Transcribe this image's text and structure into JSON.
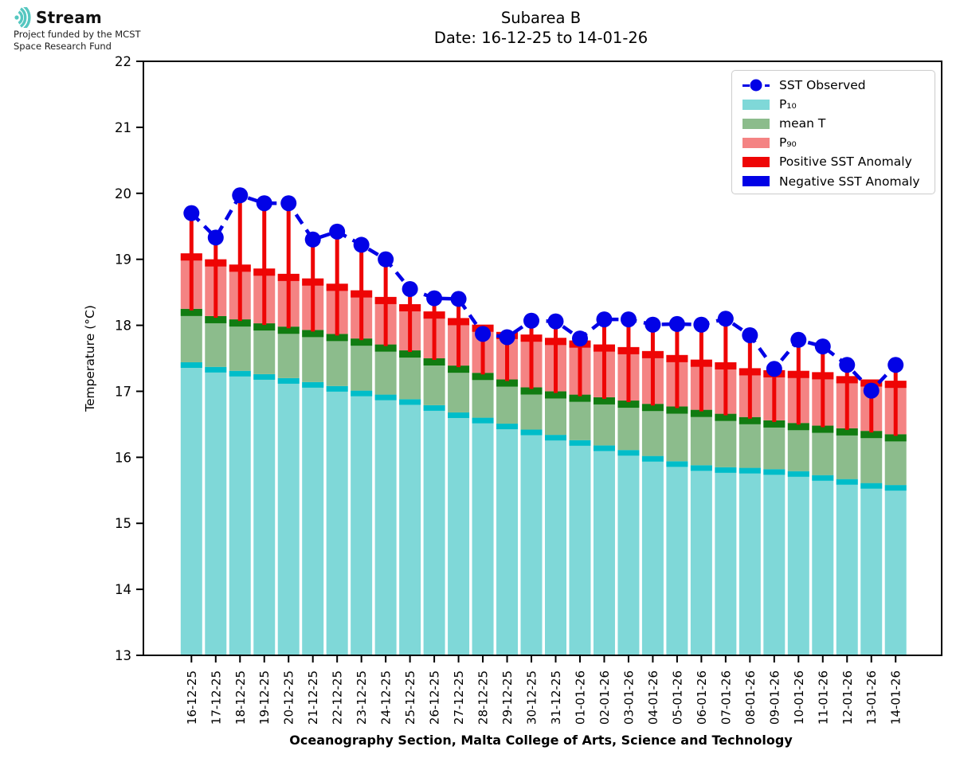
{
  "logo": {
    "name": "Stream",
    "subtitle_line1": "Project funded by the MCST",
    "subtitle_line2": "Space Research Fund",
    "accent_color": "#55c7c0"
  },
  "title": {
    "line1": "Subarea B",
    "line2": "Date: 16-12-25 to 14-01-26"
  },
  "chart_data": {
    "type": "bar",
    "title": "Subarea B",
    "subtitle": "Date: 16-12-25 to 14-01-26",
    "xlabel": "Oceanography Section, Malta College of Arts, Science and Technology",
    "ylabel": "Temperature (°C)",
    "ylim": [
      13,
      22
    ],
    "y_ticks": [
      13,
      14,
      15,
      16,
      17,
      18,
      19,
      20,
      21,
      22
    ],
    "grid": false,
    "legend_position": "upper right",
    "baseline": 13,
    "categories": [
      "16-12-25",
      "17-12-25",
      "18-12-25",
      "19-12-25",
      "20-12-25",
      "21-12-25",
      "22-12-25",
      "23-12-25",
      "24-12-25",
      "25-12-25",
      "26-12-25",
      "27-12-25",
      "28-12-25",
      "29-12-25",
      "30-12-25",
      "31-12-25",
      "01-01-26",
      "02-01-26",
      "03-01-26",
      "04-01-26",
      "05-01-26",
      "06-01-26",
      "07-01-26",
      "08-01-26",
      "09-01-26",
      "10-01-26",
      "11-01-26",
      "12-01-26",
      "13-01-26",
      "14-01-26"
    ],
    "series": [
      {
        "name": "P₁₀",
        "role": "p10",
        "type": "bar",
        "fill": "#7fd8d8",
        "cap": "#00bdc9",
        "values": [
          17.44,
          17.37,
          17.31,
          17.26,
          17.2,
          17.14,
          17.08,
          17.01,
          16.95,
          16.88,
          16.79,
          16.68,
          16.6,
          16.51,
          16.42,
          16.34,
          16.26,
          16.18,
          16.11,
          16.02,
          15.94,
          15.88,
          15.85,
          15.84,
          15.82,
          15.79,
          15.73,
          15.67,
          15.61,
          15.58
        ]
      },
      {
        "name": "mean T",
        "role": "mean",
        "type": "bar",
        "fill": "#8cbc8c",
        "cap": "#117c11",
        "values": [
          18.25,
          18.14,
          18.09,
          18.03,
          17.98,
          17.93,
          17.87,
          17.8,
          17.71,
          17.62,
          17.5,
          17.39,
          17.28,
          17.18,
          17.06,
          17.0,
          16.95,
          16.91,
          16.86,
          16.81,
          16.77,
          16.72,
          16.66,
          16.61,
          16.56,
          16.52,
          16.48,
          16.44,
          16.4,
          16.35
        ]
      },
      {
        "name": "P₉₀",
        "role": "p90",
        "type": "bar",
        "fill": "#f48383",
        "cap": "#ee0505",
        "values": [
          19.09,
          19.0,
          18.92,
          18.86,
          18.78,
          18.71,
          18.63,
          18.53,
          18.43,
          18.32,
          18.21,
          18.11,
          18.01,
          17.9,
          17.86,
          17.81,
          17.77,
          17.71,
          17.67,
          17.61,
          17.55,
          17.48,
          17.44,
          17.35,
          17.32,
          17.31,
          17.29,
          17.23,
          17.18,
          17.16
        ]
      },
      {
        "name": "SST Observed",
        "role": "line",
        "type": "line",
        "color": "#0202e6",
        "style": "dashed",
        "marker": "circle",
        "values": [
          19.7,
          19.33,
          19.97,
          19.85,
          19.85,
          19.3,
          19.42,
          19.22,
          19.0,
          18.55,
          18.41,
          18.4,
          17.87,
          17.82,
          18.07,
          18.06,
          17.8,
          18.09,
          18.09,
          18.01,
          18.02,
          18.01,
          18.1,
          17.85,
          17.34,
          17.78,
          17.68,
          17.4,
          17.01,
          17.4
        ]
      }
    ],
    "anomaly": {
      "note": "vertical line from mean T to SST Observed",
      "positive_color": "#ee0505",
      "negative_color": "#0202e6"
    },
    "legend": [
      {
        "label": "SST Observed",
        "marker": "line-dot",
        "color": "#0202e6"
      },
      {
        "label": "P₁₀",
        "marker": "patch",
        "color": "#7fd8d8"
      },
      {
        "label": "mean T",
        "marker": "patch",
        "color": "#8cbc8c"
      },
      {
        "label": "P₉₀",
        "marker": "patch",
        "color": "#f48383"
      },
      {
        "label": "Positive SST Anomaly",
        "marker": "patch",
        "color": "#ee0505"
      },
      {
        "label": "Negative SST Anomaly",
        "marker": "patch",
        "color": "#0202e6"
      }
    ]
  }
}
